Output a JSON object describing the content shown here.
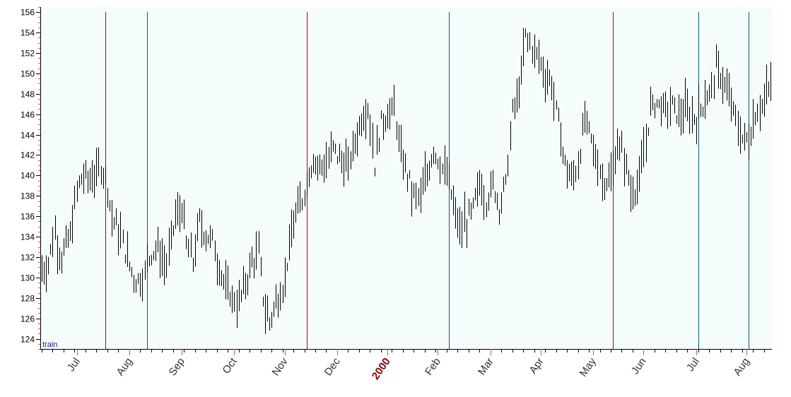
{
  "colors": {
    "plot_bg": "#f5fcfc",
    "bar": "#000000",
    "vline_red": "#c00000",
    "vline_blue": "#0b5a78",
    "tick_red": "#e05050",
    "corner_text": "#1a1aa0"
  },
  "chart_data": {
    "type": "ohlc",
    "corner_label": "train",
    "ylim": [
      123,
      156.5
    ],
    "yticks": [
      124,
      126,
      128,
      130,
      132,
      134,
      136,
      138,
      140,
      142,
      144,
      146,
      148,
      150,
      152,
      154,
      156
    ],
    "grid": false,
    "xlim": [
      0,
      333
    ],
    "month_labels": [
      {
        "label": "Jul",
        "pos": 16,
        "year": false
      },
      {
        "label": "Aug",
        "pos": 40,
        "year": false
      },
      {
        "label": "Sep",
        "pos": 64,
        "year": false
      },
      {
        "label": "Oct",
        "pos": 88,
        "year": false
      },
      {
        "label": "Nov",
        "pos": 111,
        "year": false
      },
      {
        "label": "Dec",
        "pos": 135,
        "year": false
      },
      {
        "label": "2000",
        "pos": 158,
        "year": true
      },
      {
        "label": "Feb",
        "pos": 181,
        "year": false
      },
      {
        "label": "Mar",
        "pos": 205,
        "year": false
      },
      {
        "label": "Apr",
        "pos": 228,
        "year": false
      },
      {
        "label": "May",
        "pos": 252,
        "year": false
      },
      {
        "label": "Jun",
        "pos": 275,
        "year": false
      },
      {
        "label": "Jul",
        "pos": 299,
        "year": false
      },
      {
        "label": "Aug",
        "pos": 322,
        "year": false
      }
    ],
    "vertical_lines": [
      {
        "pos": 29,
        "color": "red"
      },
      {
        "pos": 48,
        "color": "blue"
      },
      {
        "pos": 121,
        "color": "red"
      },
      {
        "pos": 186,
        "color": "blue"
      },
      {
        "pos": 261,
        "color": "red"
      },
      {
        "pos": 300,
        "color": "blue"
      },
      {
        "pos": 323,
        "color": "blue"
      }
    ],
    "keypoints": [
      [
        0,
        130.5
      ],
      [
        3,
        131.5
      ],
      [
        6,
        134.5
      ],
      [
        9,
        132
      ],
      [
        13,
        134
      ],
      [
        16,
        138.5
      ],
      [
        19,
        140
      ],
      [
        22,
        139.5
      ],
      [
        26,
        141
      ],
      [
        29,
        140
      ],
      [
        32,
        136
      ],
      [
        36,
        134
      ],
      [
        40,
        131
      ],
      [
        43,
        129.5
      ],
      [
        46,
        130
      ],
      [
        49,
        132
      ],
      [
        53,
        133
      ],
      [
        57,
        131.5
      ],
      [
        61,
        136
      ],
      [
        64,
        137
      ],
      [
        66,
        133
      ],
      [
        69,
        131.5
      ],
      [
        72,
        135.5
      ],
      [
        75,
        134
      ],
      [
        78,
        133.5
      ],
      [
        81,
        131
      ],
      [
        84,
        129
      ],
      [
        87,
        128
      ],
      [
        90,
        127.5
      ],
      [
        93,
        129.5
      ],
      [
        96,
        131.5
      ],
      [
        99,
        132.5
      ],
      [
        101,
        128
      ],
      [
        104,
        125.5
      ],
      [
        107,
        127.5
      ],
      [
        110,
        129
      ],
      [
        113,
        133
      ],
      [
        116,
        136
      ],
      [
        119,
        137.5
      ],
      [
        121,
        139.5
      ],
      [
        124,
        141.5
      ],
      [
        127,
        141
      ],
      [
        130,
        141
      ],
      [
        133,
        142.5
      ],
      [
        136,
        141.5
      ],
      [
        140,
        141
      ],
      [
        143,
        143.5
      ],
      [
        146,
        145.5
      ],
      [
        149,
        147
      ],
      [
        152,
        141
      ],
      [
        155,
        145
      ],
      [
        158,
        146
      ],
      [
        161,
        146.5
      ],
      [
        164,
        142
      ],
      [
        167,
        140
      ],
      [
        170,
        138
      ],
      [
        173,
        138
      ],
      [
        176,
        140
      ],
      [
        179,
        142.5
      ],
      [
        182,
        141
      ],
      [
        185,
        140
      ],
      [
        188,
        137
      ],
      [
        191,
        135
      ],
      [
        194,
        135.5
      ],
      [
        197,
        136.5
      ],
      [
        200,
        139.5
      ],
      [
        203,
        137.5
      ],
      [
        206,
        139
      ],
      [
        209,
        137
      ],
      [
        212,
        139
      ],
      [
        215,
        146
      ],
      [
        218,
        148.5
      ],
      [
        221,
        153.5
      ],
      [
        224,
        152.5
      ],
      [
        227,
        151.5
      ],
      [
        230,
        150
      ],
      [
        233,
        149
      ],
      [
        236,
        145
      ],
      [
        239,
        141
      ],
      [
        242,
        139.5
      ],
      [
        245,
        141
      ],
      [
        248,
        145.5
      ],
      [
        251,
        143.5
      ],
      [
        254,
        141
      ],
      [
        257,
        139.5
      ],
      [
        260,
        139.5
      ],
      [
        263,
        143
      ],
      [
        266,
        142
      ],
      [
        269,
        138.5
      ],
      [
        272,
        139
      ],
      [
        275,
        142
      ],
      [
        278,
        146.5
      ],
      [
        281,
        147
      ],
      [
        284,
        146.5
      ],
      [
        287,
        147
      ],
      [
        290,
        146
      ],
      [
        293,
        146.5
      ],
      [
        296,
        146
      ],
      [
        299,
        145.5
      ],
      [
        302,
        147
      ],
      [
        305,
        148
      ],
      [
        308,
        150.5
      ],
      [
        311,
        149.5
      ],
      [
        314,
        147.5
      ],
      [
        317,
        145.5
      ],
      [
        320,
        143.5
      ],
      [
        323,
        143.5
      ],
      [
        326,
        146
      ],
      [
        329,
        147
      ],
      [
        333,
        149
      ]
    ]
  }
}
